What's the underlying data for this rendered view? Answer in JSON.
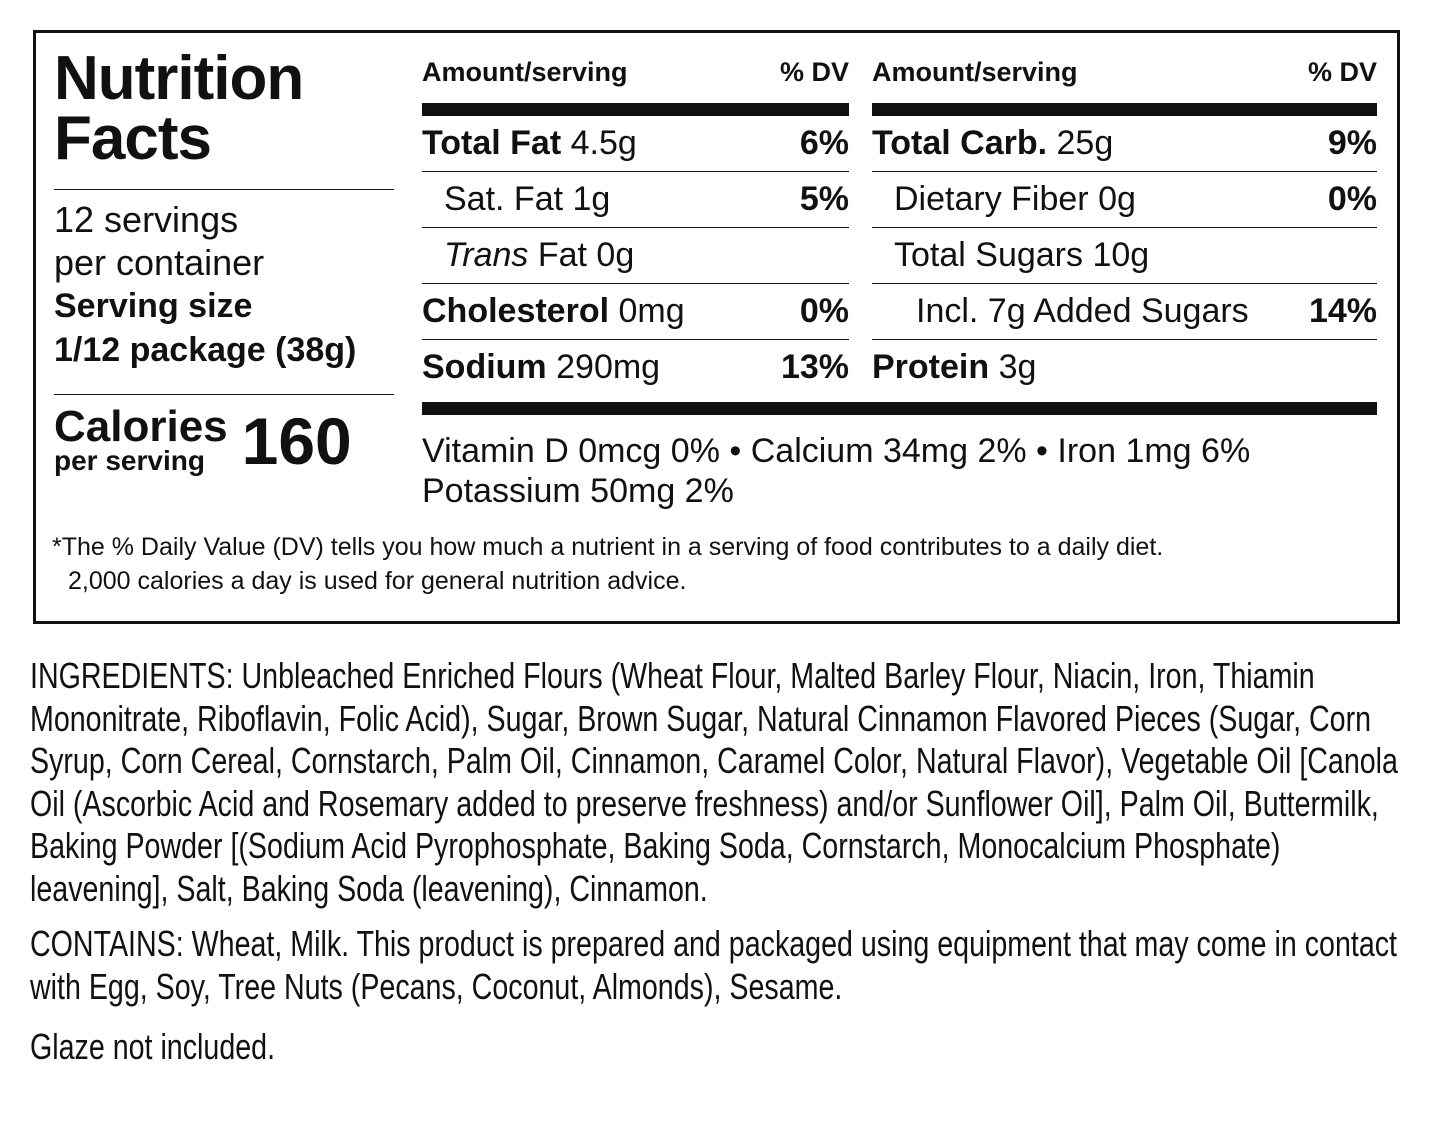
{
  "label": {
    "title_line1": "Nutrition",
    "title_line2": "Facts",
    "servings_line1": "12 servings",
    "servings_line2": "per container",
    "serving_size_label": "Serving size",
    "serving_size_value": "1/12 package (38g)",
    "calories_label": "Calories",
    "calories_sub": "per serving",
    "calories_value": "160",
    "header_amount": "Amount/serving",
    "header_dv": "% DV",
    "left_rows": [
      {
        "name": "Total Fat",
        "amount": "4.5g",
        "dv": "6%",
        "bold": true,
        "indent": 0
      },
      {
        "name": "Sat. Fat",
        "amount": "1g",
        "dv": "5%",
        "bold": false,
        "indent": 1
      },
      {
        "name": "Trans",
        "amount": "Fat 0g",
        "dv": "",
        "bold": false,
        "indent": 1,
        "italic": true
      },
      {
        "name": "Cholesterol",
        "amount": "0mg",
        "dv": "0%",
        "bold": true,
        "indent": 0
      },
      {
        "name": "Sodium",
        "amount": "290mg",
        "dv": "13%",
        "bold": true,
        "indent": 0
      }
    ],
    "right_rows": [
      {
        "name": "Total Carb.",
        "amount": "25g",
        "dv": "9%",
        "bold": true,
        "indent": 0
      },
      {
        "name": "Dietary Fiber",
        "amount": "0g",
        "dv": "0%",
        "bold": false,
        "indent": 1
      },
      {
        "name": "Total Sugars",
        "amount": "10g",
        "dv": "",
        "bold": false,
        "indent": 1
      },
      {
        "name": "Incl. 7g Added Sugars",
        "amount": "",
        "dv": "14%",
        "bold": false,
        "indent": 2
      },
      {
        "name": "Protein",
        "amount": "3g",
        "dv": "",
        "bold": true,
        "indent": 0
      }
    ],
    "vitamins_line1": "Vitamin D 0mcg 0% • Calcium 34mg 2% • Iron 1mg 6%",
    "vitamins_line2": "Potassium 50mg 2%",
    "footnote_line1": "*The % Daily Value (DV) tells you how much a nutrient in a serving of food contributes to a daily diet.",
    "footnote_line2": "2,000 calories a day is used for general nutrition advice."
  },
  "ingredients": "INGREDIENTS: Unbleached Enriched Flours (Wheat Flour, Malted Barley Flour, Niacin, Iron, Thiamin Mononitrate, Riboflavin, Folic Acid), Sugar, Brown Sugar, Natural Cinnamon Flavored Pieces (Sugar, Corn Syrup, Corn Cereal, Cornstarch, Palm Oil, Cinnamon, Caramel Color, Natural Flavor), Vegetable Oil [Canola Oil (Ascorbic Acid and Rosemary added to preserve freshness) and/or Sunflower Oil], Palm Oil, Buttermilk, Baking Powder [(Sodium Acid Pyrophosphate, Baking Soda, Cornstarch, Monocalcium Phosphate) leavening], Salt, Baking Soda (leavening), Cinnamon.",
  "contains": "CONTAINS: Wheat, Milk. This product is prepared and packaged using equipment that may come in contact with Egg, Soy, Tree Nuts (Pecans, Coconut, Almonds), Sesame.",
  "note": "Glaze not included."
}
